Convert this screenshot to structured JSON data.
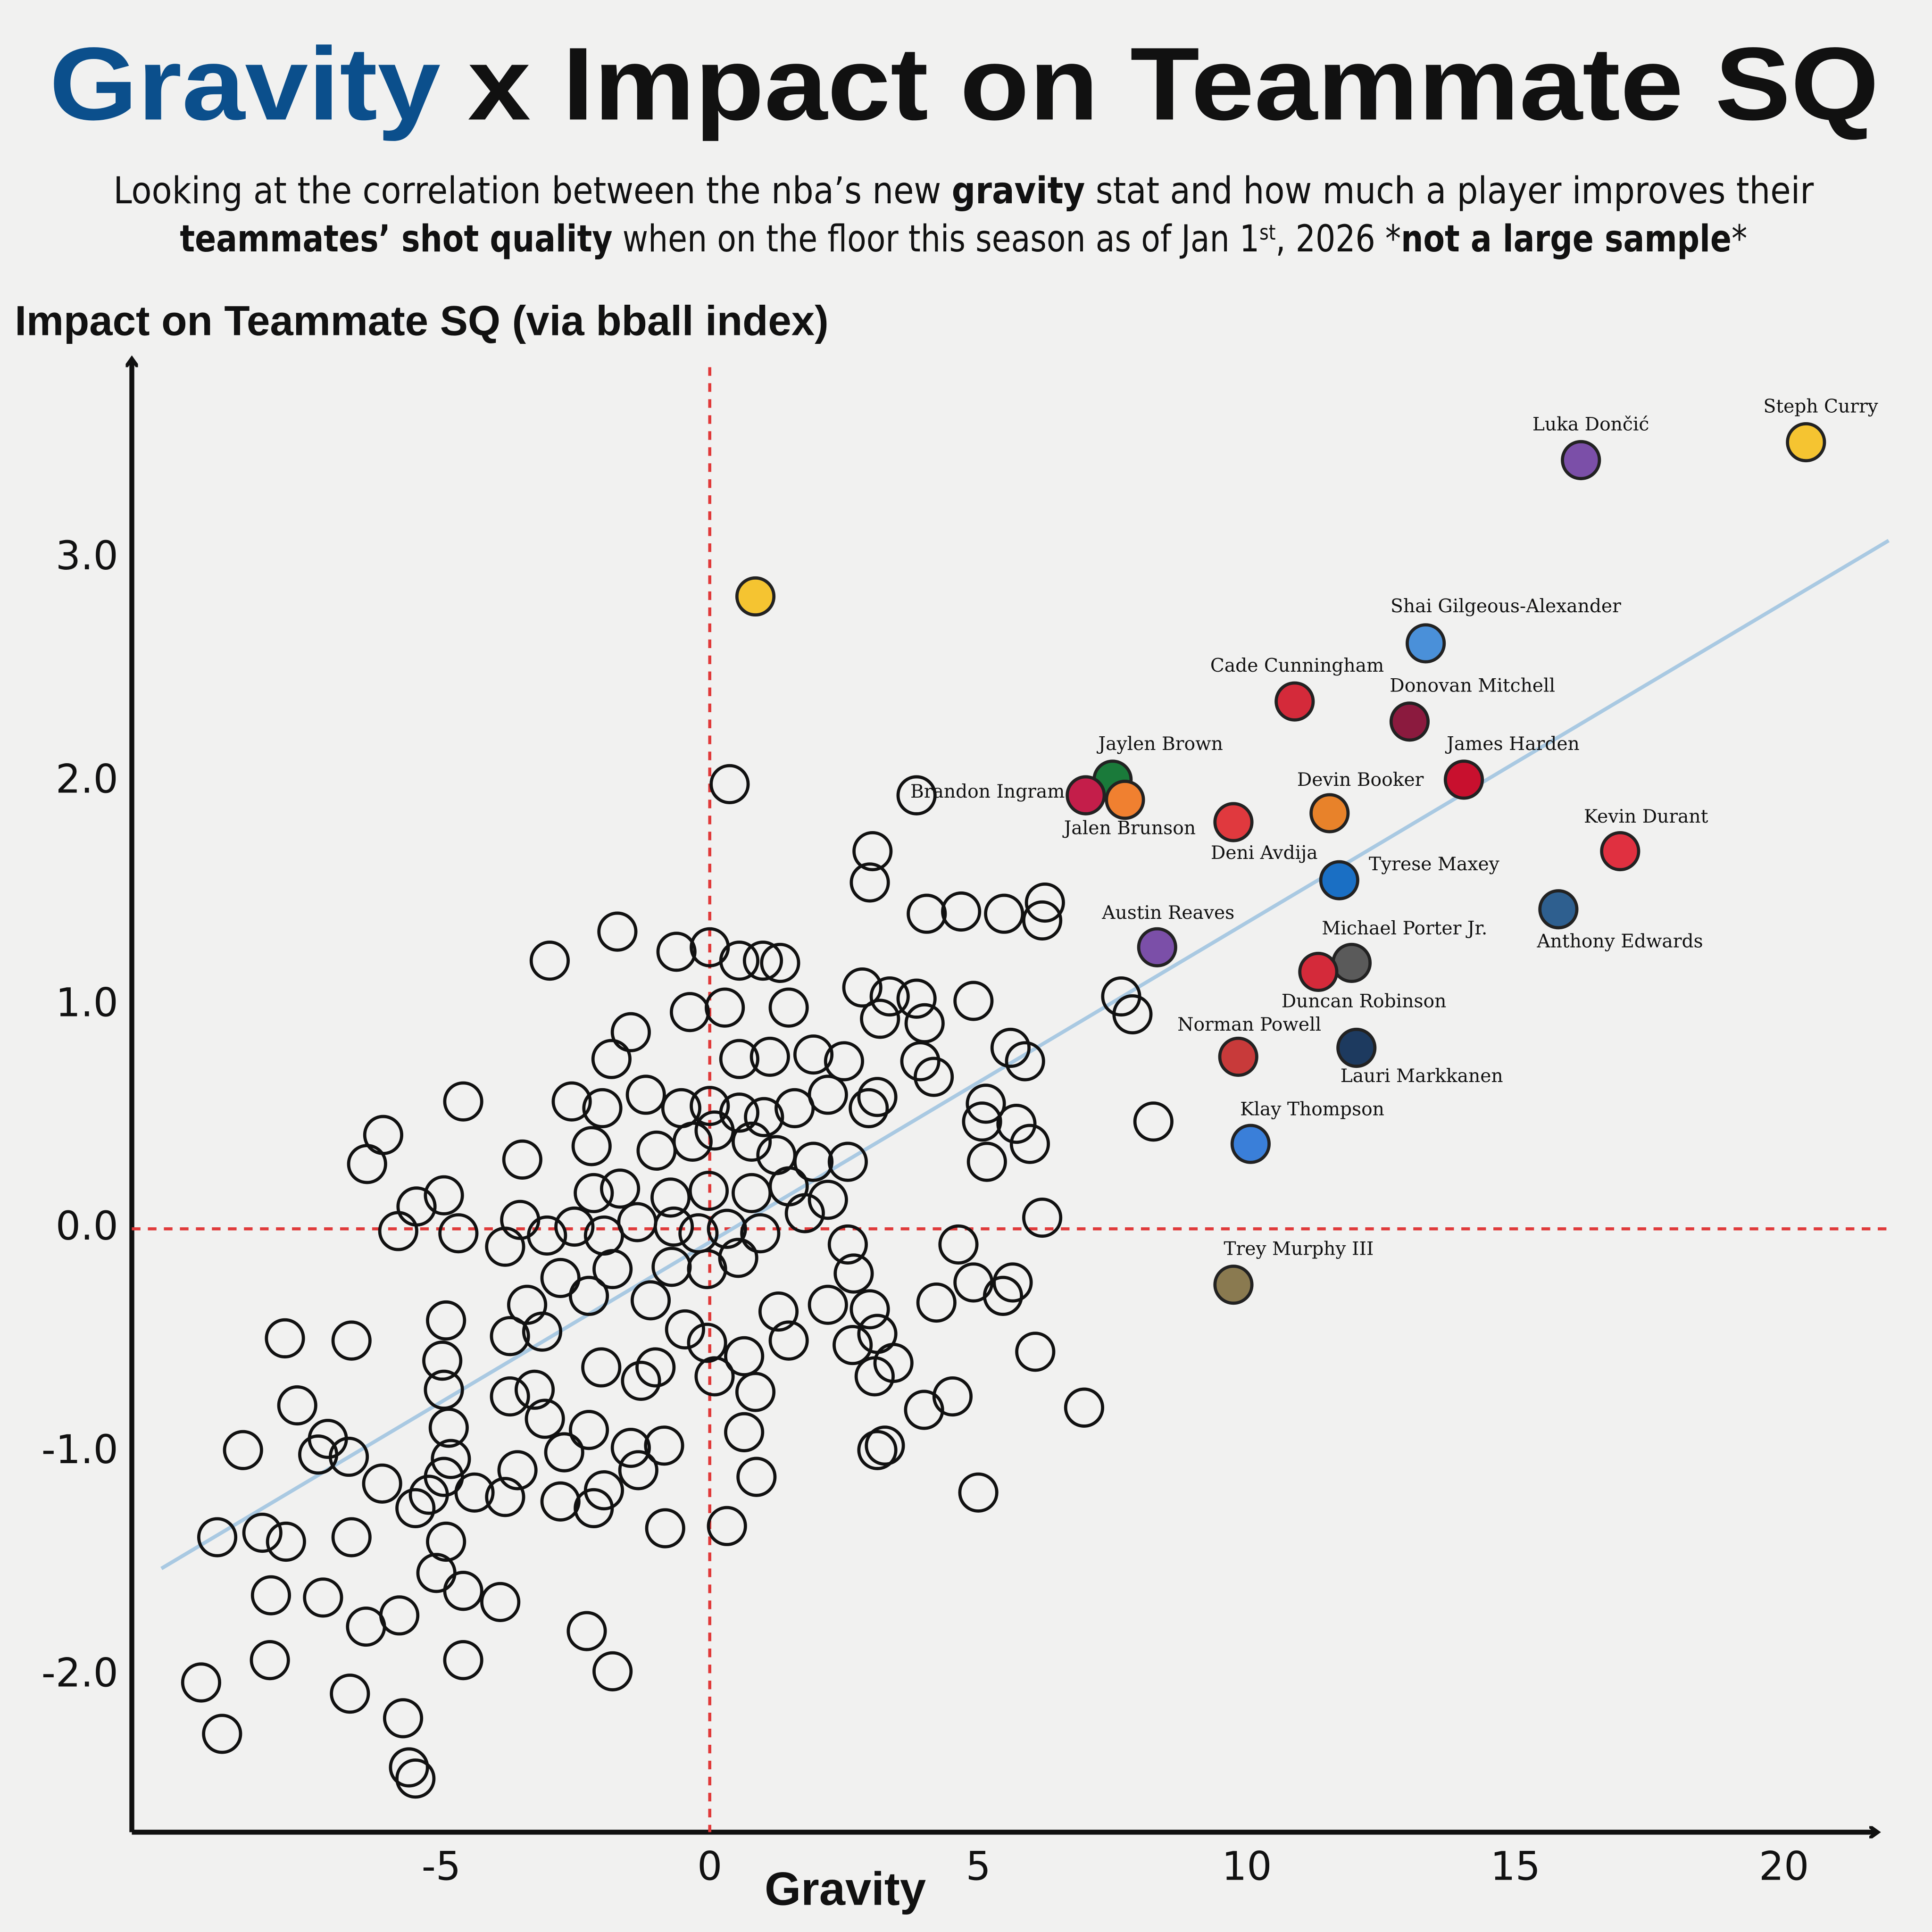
{
  "chart_data": {
    "type": "scatter",
    "title_highlight": "Gravity",
    "title_rest": "x Impact on Teammate SQ",
    "title_highlight_color": "#0b4f8c",
    "subtitle_lines": [
      [
        {
          "text": "Looking at the correlation between the nba’s new ",
          "bold": false
        },
        {
          "text": "gravity",
          "bold": true
        },
        {
          "text": " stat and how much a player improves their",
          "bold": false
        }
      ],
      [
        {
          "text": "teammates’ shot quality",
          "bold": true
        },
        {
          "text": " when on the floor this season as of Jan 1",
          "bold": false
        },
        {
          "text": "st",
          "bold": false,
          "sup": true
        },
        {
          "text": ", 2026 *",
          "bold": false
        },
        {
          "text": "not a large sample",
          "bold": true
        },
        {
          "text": "*",
          "bold": false
        }
      ]
    ],
    "x_label": "Gravity",
    "y_label": "Impact on Teammate SQ (via bball index)",
    "xlim": [
      -10.76,
      21.77
    ],
    "ylim": [
      -2.7,
      3.9
    ],
    "xticks": [
      -5,
      0,
      5,
      10,
      15,
      20
    ],
    "yticks": [
      {
        "value": -2,
        "label": "-2.0"
      },
      {
        "value": -1,
        "label": "-1.0"
      },
      {
        "value": 0,
        "label": "0.0"
      },
      {
        "value": 1,
        "label": "1.0"
      },
      {
        "value": 2,
        "label": "2.0"
      },
      {
        "value": 3,
        "label": "3.0"
      }
    ],
    "grid": false,
    "reference_lines": {
      "x": 0,
      "y": 0,
      "color": "#e03a3a"
    },
    "trendline": {
      "x": [
        -10.21,
        21.95
      ],
      "y": [
        -1.52,
        3.08
      ],
      "color": "#a9c9e2"
    },
    "points": {
      "x": [
        0.37,
        3.85,
        3.03,
        2.98,
        4.04,
        4.68,
        5.48,
        6.24,
        6.19,
        -1.72,
        -2.98,
        -0.62,
        0,
        0.55,
        0.99,
        1.31,
        2.84,
        3.35,
        3.85,
        4.91,
        -1.47,
        -0.37,
        0.28,
        1.47,
        3.17,
        4.0,
        7.66,
        7.87,
        -1.83,
        0.55,
        1.12,
        1.93,
        2.5,
        3.92,
        4.17,
        5.6,
        5.87,
        -4.59,
        -2.57,
        -2.0,
        -1.19,
        -0.53,
        0,
        0.55,
        1.01,
        1.58,
        2.2,
        2.96,
        3.12,
        5.14,
        5.07,
        5.71,
        8.26,
        -6.08,
        -6.38,
        -3.49,
        -2.2,
        -0.99,
        -0.32,
        0.09,
        0.78,
        1.24,
        1.93,
        2.57,
        5.16,
        5.96,
        -5.46,
        -4.95,
        -2.16,
        -1.67,
        -0.73,
        -0.02,
        0.78,
        1.47,
        2.2,
        6.19,
        -5.8,
        -4.68,
        -3.53,
        -3.03,
        -2.52,
        -1.97,
        -1.35,
        -0.67,
        -0.21,
        0.32,
        0.94,
        1.77,
        -3.81,
        -2.78,
        -1.81,
        -0.71,
        -0.05,
        0.53,
        2.57,
        2.68,
        4.63,
        4.91,
        5.64,
        -3.4,
        -2.25,
        -1.1,
        2.2,
        2.98,
        4.22,
        5.46,
        -4.91,
        -3.72,
        -3.12,
        -0.46,
        1.28,
        -7.91,
        -6.67,
        -4.98,
        -2.02,
        -1.01,
        -0.05,
        0.64,
        1.47,
        2.66,
        3.12,
        6.06,
        -4.95,
        -3.72,
        -3.26,
        -1.28,
        0.09,
        0.85,
        3.42,
        3.07,
        -7.68,
        -4.86,
        -3.07,
        -2.25,
        0.64,
        3.99,
        4.52,
        6.97,
        -8.69,
        -7.11,
        -7.29,
        -6.72,
        -4.82,
        -2.71,
        -1.47,
        -0.85,
        3.12,
        3.26,
        -6.1,
        -4.95,
        -4.38,
        -3.58,
        -2.78,
        -1.97,
        -1.33,
        0.87,
        5.0,
        -9.17,
        -8.33,
        -7.89,
        -6.67,
        -5.48,
        -5.23,
        -3.81,
        -2.16,
        -0.83,
        0.32,
        -4.91,
        -8.17,
        -7.2,
        -5.09,
        -4.59,
        -3.9,
        -6.4,
        -5.78,
        -2.29,
        -8.19,
        -4.59,
        -1.81,
        -9.47,
        -6.7,
        -5.71,
        -9.08,
        -5.6,
        -5.48
      ],
      "y": [
        1.99,
        1.94,
        1.69,
        1.55,
        1.41,
        1.42,
        1.41,
        1.46,
        1.38,
        1.33,
        1.2,
        1.24,
        1.26,
        1.2,
        1.2,
        1.19,
        1.08,
        1.04,
        1.03,
        1.02,
        0.88,
        0.97,
        0.99,
        0.99,
        0.94,
        0.92,
        1.04,
        0.96,
        0.76,
        0.76,
        0.77,
        0.78,
        0.75,
        0.75,
        0.68,
        0.81,
        0.75,
        0.57,
        0.57,
        0.54,
        0.6,
        0.54,
        0.55,
        0.52,
        0.5,
        0.54,
        0.6,
        0.54,
        0.59,
        0.56,
        0.48,
        0.47,
        0.48,
        0.42,
        0.29,
        0.31,
        0.37,
        0.35,
        0.39,
        0.44,
        0.39,
        0.33,
        0.3,
        0.3,
        0.3,
        0.38,
        0.1,
        0.15,
        0.16,
        0.18,
        0.14,
        0.17,
        0.16,
        0.19,
        0.13,
        0.05,
        -0.01,
        -0.02,
        0.04,
        -0.03,
        0.01,
        -0.03,
        0.03,
        0.01,
        -0.02,
        0,
        -0.02,
        0.07,
        -0.08,
        -0.22,
        -0.18,
        -0.17,
        -0.18,
        -0.13,
        -0.07,
        -0.2,
        -0.07,
        -0.24,
        -0.24,
        -0.34,
        -0.3,
        -0.32,
        -0.34,
        -0.36,
        -0.33,
        -0.3,
        -0.41,
        -0.48,
        -0.46,
        -0.45,
        -0.37,
        -0.49,
        -0.5,
        -0.59,
        -0.62,
        -0.62,
        -0.51,
        -0.57,
        -0.5,
        -0.52,
        -0.47,
        -0.55,
        -0.72,
        -0.75,
        -0.72,
        -0.68,
        -0.66,
        -0.73,
        -0.6,
        -0.66,
        -0.79,
        -0.89,
        -0.85,
        -0.9,
        -0.91,
        -0.81,
        -0.75,
        -0.8,
        -0.99,
        -0.94,
        -1.01,
        -1.02,
        -1.03,
        -1.0,
        -0.98,
        -0.97,
        -0.99,
        -0.97,
        -1.14,
        -1.11,
        -1.18,
        -1.08,
        -1.22,
        -1.17,
        -1.08,
        -1.11,
        -1.18,
        -1.38,
        -1.36,
        -1.4,
        -1.38,
        -1.25,
        -1.19,
        -1.2,
        -1.25,
        -1.34,
        -1.33,
        -1.4,
        -1.64,
        -1.65,
        -1.54,
        -1.62,
        -1.67,
        -1.78,
        -1.73,
        -1.8,
        -1.93,
        -1.93,
        -1.98,
        -2.03,
        -2.08,
        -2.19,
        -2.26,
        -2.41,
        -2.46
      ]
    },
    "unlabeled_highlight": {
      "x": 0.85,
      "y": 2.83,
      "color": "#f5c431"
    },
    "highlighted": [
      {
        "name": "Steph Curry",
        "color": "#f5c431",
        "x": 20.41,
        "y": 3.52
      },
      {
        "name": "Luka Dončić",
        "color": "#7b4fa8",
        "x": 16.22,
        "y": 3.44
      },
      {
        "name": "Shai Gilgeous-Alexander",
        "color": "#4a90d9",
        "x": 13.33,
        "y": 2.62
      },
      {
        "name": "Cade Cunningham",
        "color": "#d42a3a",
        "x": 10.89,
        "y": 2.36
      },
      {
        "name": "Donovan Mitchell",
        "color": "#8b1a3e",
        "x": 13.03,
        "y": 2.27
      },
      {
        "name": "James Harden",
        "color": "#c8102e",
        "x": 14.04,
        "y": 2.01
      },
      {
        "name": "Devin Booker",
        "color": "#e8822a",
        "x": 11.54,
        "y": 1.86
      },
      {
        "name": "Deni Avdija",
        "color": "#e0393e",
        "x": 9.75,
        "y": 1.82
      },
      {
        "name": "Jaylen Brown",
        "color": "#1a7a3a",
        "x": 7.5,
        "y": 2.01
      },
      {
        "name": "Brandon Ingram",
        "color": "#c41e4a",
        "x": 7.0,
        "y": 1.94
      },
      {
        "name": "Jalen Brunson",
        "color": "#f08030",
        "x": 7.73,
        "y": 1.92
      },
      {
        "name": "Kevin Durant",
        "color": "#e03040",
        "x": 16.95,
        "y": 1.69
      },
      {
        "name": "Tyrese Maxey",
        "color": "#1a6fc4",
        "x": 11.72,
        "y": 1.56
      },
      {
        "name": "Anthony Edwards",
        "color": "#2e5f8f",
        "x": 15.8,
        "y": 1.43
      },
      {
        "name": "Austin Reaves",
        "color": "#7b4fa8",
        "x": 8.33,
        "y": 1.26
      },
      {
        "name": "Michael Porter Jr.",
        "color": "#5a5a5a",
        "x": 11.95,
        "y": 1.19
      },
      {
        "name": "Duncan Robinson",
        "color": "#d42a3a",
        "x": 11.33,
        "y": 1.15
      },
      {
        "name": "Norman Powell",
        "color": "#c83a3a",
        "x": 9.84,
        "y": 0.77
      },
      {
        "name": "Lauri Markkanen",
        "color": "#1d3a5f",
        "x": 12.04,
        "y": 0.81
      },
      {
        "name": "Klay Thompson",
        "color": "#3a7fd9",
        "x": 10.07,
        "y": 0.38
      },
      {
        "name": "Trey Murphy III",
        "color": "#8a7a50",
        "x": 9.75,
        "y": -0.25
      }
    ]
  }
}
